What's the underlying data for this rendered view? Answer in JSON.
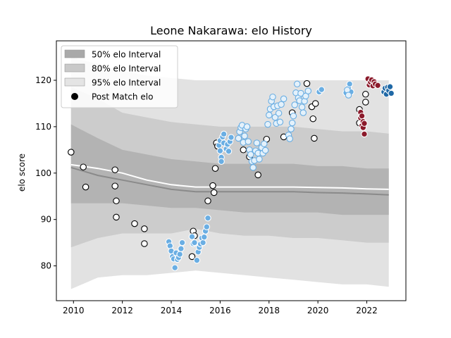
{
  "chart_data": {
    "type": "scatter",
    "title": "Leone Nakarawa: elo History",
    "xlabel": "",
    "ylabel": "elo score",
    "xlim": [
      2009.3,
      2023.6
    ],
    "ylim": [
      72.5,
      128.5
    ],
    "x_ticks": [
      2010,
      2012,
      2014,
      2016,
      2018,
      2020,
      2022
    ],
    "y_ticks": [
      80,
      90,
      100,
      110,
      120
    ],
    "grid": false,
    "legend_position": "top-left",
    "legend": [
      {
        "label": "50% elo Interval",
        "kind": "band",
        "color": "#a9a9a9"
      },
      {
        "label": "80% elo Interval",
        "kind": "band",
        "color": "#c9c9c9"
      },
      {
        "label": "95% elo Interval",
        "kind": "band",
        "color": "#e4e4e4"
      },
      {
        "label": "Post Match elo",
        "kind": "marker",
        "color": "#000000"
      }
    ],
    "colors": {
      "band50": "#b3b3b3",
      "band80": "#cccccc",
      "band95": "#e2e2e2",
      "median": "#8a8a8a",
      "mean": "#ffffff"
    },
    "interval_series": {
      "x": [
        2009.9,
        2011.0,
        2012.0,
        2013.0,
        2014.0,
        2015.0,
        2016.0,
        2017.0,
        2018.0,
        2019.0,
        2020.0,
        2021.0,
        2022.0,
        2022.9
      ],
      "lo95": [
        75.0,
        77.5,
        78.0,
        78.0,
        78.5,
        79.0,
        78.5,
        78.0,
        77.5,
        77.0,
        76.5,
        76.0,
        76.0,
        75.5
      ],
      "lo80": [
        84.0,
        86.0,
        87.0,
        87.0,
        87.0,
        88.0,
        87.0,
        86.5,
        86.5,
        86.0,
        86.0,
        85.5,
        85.0,
        85.0
      ],
      "lo50": [
        93.5,
        93.5,
        93.5,
        93.0,
        92.5,
        92.5,
        92.0,
        91.5,
        91.5,
        91.5,
        91.5,
        91.0,
        91.0,
        91.0
      ],
      "median": [
        101.2,
        99.5,
        98.5,
        97.5,
        96.5,
        96.0,
        96.0,
        96.0,
        96.0,
        96.0,
        95.8,
        95.7,
        95.5,
        95.3
      ],
      "mean": [
        101.8,
        101.0,
        100.0,
        98.5,
        97.5,
        97.0,
        97.0,
        97.0,
        97.0,
        97.0,
        96.9,
        96.8,
        96.6,
        96.5
      ],
      "hi50": [
        110.5,
        107.5,
        105.0,
        104.0,
        103.0,
        102.5,
        102.0,
        102.0,
        102.0,
        102.0,
        101.5,
        101.5,
        101.0,
        101.0
      ],
      "hi80": [
        118.5,
        116.0,
        113.0,
        112.0,
        111.0,
        110.5,
        110.0,
        110.0,
        110.0,
        110.0,
        109.5,
        109.0,
        109.0,
        108.5
      ],
      "hi95": [
        125.0,
        123.5,
        122.0,
        121.0,
        120.5,
        120.0,
        120.0,
        120.0,
        120.0,
        120.0,
        120.0,
        120.0,
        120.0,
        120.0
      ]
    },
    "series": [
      {
        "name": "Post Match elo",
        "fill": "#ffffff",
        "edge": "#000000",
        "points": [
          [
            2009.9,
            104.5
          ],
          [
            2010.4,
            101.3
          ],
          [
            2010.5,
            97.0
          ],
          [
            2011.7,
            100.7
          ],
          [
            2011.7,
            97.2
          ],
          [
            2011.75,
            94.0
          ],
          [
            2011.75,
            90.5
          ],
          [
            2012.5,
            89.1
          ],
          [
            2012.9,
            88.0
          ],
          [
            2012.9,
            84.8
          ],
          [
            2014.9,
            87.5
          ],
          [
            2014.95,
            86.5
          ],
          [
            2014.85,
            82.0
          ],
          [
            2015.5,
            94.0
          ],
          [
            2015.7,
            97.3
          ],
          [
            2015.75,
            95.8
          ],
          [
            2015.8,
            101.0
          ],
          [
            2015.85,
            106.5
          ],
          [
            2015.9,
            105.8
          ],
          [
            2016.95,
            105.0
          ],
          [
            2017.2,
            103.5
          ],
          [
            2017.55,
            99.6
          ],
          [
            2017.9,
            107.3
          ],
          [
            2018.6,
            107.8
          ],
          [
            2018.95,
            113.0
          ],
          [
            2019.55,
            119.3
          ],
          [
            2019.75,
            114.3
          ],
          [
            2019.8,
            111.7
          ],
          [
            2019.85,
            107.5
          ],
          [
            2019.9,
            115.0
          ],
          [
            2021.7,
            113.7
          ],
          [
            2021.7,
            110.8
          ],
          [
            2021.95,
            117.0
          ],
          [
            2021.95,
            115.3
          ]
        ]
      },
      {
        "name": "",
        "fill": "#6aaee3",
        "edge": "#ffffff",
        "points": [
          [
            2013.9,
            85.2
          ],
          [
            2013.95,
            84.3
          ],
          [
            2014.0,
            83.2
          ],
          [
            2014.05,
            82.0
          ],
          [
            2014.1,
            81.5
          ],
          [
            2014.15,
            79.6
          ],
          [
            2014.2,
            82.8
          ],
          [
            2014.25,
            81.4
          ],
          [
            2014.3,
            81.8
          ],
          [
            2014.35,
            82.5
          ],
          [
            2014.4,
            83.7
          ],
          [
            2014.45,
            85.0
          ],
          [
            2014.85,
            86.3
          ],
          [
            2014.9,
            84.8
          ],
          [
            2014.95,
            85.0
          ],
          [
            2015.05,
            81.2
          ],
          [
            2015.1,
            83.0
          ],
          [
            2015.15,
            84.0
          ],
          [
            2015.2,
            84.7
          ],
          [
            2015.25,
            86.0
          ],
          [
            2015.3,
            85.0
          ],
          [
            2015.35,
            86.2
          ],
          [
            2015.4,
            87.5
          ],
          [
            2015.45,
            88.4
          ],
          [
            2015.5,
            90.3
          ],
          [
            2015.95,
            106.0
          ],
          [
            2016.0,
            107.0
          ],
          [
            2016.0,
            104.8
          ],
          [
            2016.05,
            103.4
          ],
          [
            2016.05,
            102.5
          ],
          [
            2016.1,
            107.8
          ],
          [
            2016.15,
            106.5
          ],
          [
            2016.15,
            108.4
          ],
          [
            2016.25,
            105.2
          ],
          [
            2016.3,
            106.2
          ],
          [
            2016.35,
            104.7
          ],
          [
            2016.4,
            106.8
          ],
          [
            2016.45,
            107.7
          ],
          [
            2020.05,
            117.5
          ],
          [
            2020.15,
            118.0
          ],
          [
            2021.15,
            117.3
          ],
          [
            2021.25,
            118.3
          ],
          [
            2021.3,
            119.2
          ],
          [
            2021.35,
            117.5
          ]
        ]
      },
      {
        "name": "",
        "fill": "#e4f1fb",
        "edge": "#6aaee3",
        "points": [
          [
            2016.75,
            107.5
          ],
          [
            2016.8,
            108.9
          ],
          [
            2016.85,
            109.8
          ],
          [
            2016.9,
            110.3
          ],
          [
            2016.95,
            106.6
          ],
          [
            2017.0,
            108.0
          ],
          [
            2017.05,
            109.5
          ],
          [
            2017.1,
            110.0
          ],
          [
            2017.15,
            106.8
          ],
          [
            2017.2,
            105.0
          ],
          [
            2017.25,
            104.0
          ],
          [
            2017.3,
            102.5
          ],
          [
            2017.35,
            101.2
          ],
          [
            2017.4,
            102.7
          ],
          [
            2017.45,
            104.8
          ],
          [
            2017.5,
            106.5
          ],
          [
            2017.55,
            104.3
          ],
          [
            2017.6,
            103.0
          ],
          [
            2017.7,
            105.5
          ],
          [
            2017.75,
            104.3
          ],
          [
            2017.8,
            106.3
          ],
          [
            2017.85,
            104.9
          ],
          [
            2017.95,
            110.5
          ],
          [
            2018.0,
            112.5
          ],
          [
            2018.05,
            113.8
          ],
          [
            2018.1,
            115.5
          ],
          [
            2018.15,
            116.4
          ],
          [
            2018.2,
            114.3
          ],
          [
            2018.25,
            112.0
          ],
          [
            2018.3,
            110.7
          ],
          [
            2018.35,
            114.5
          ],
          [
            2018.4,
            112.9
          ],
          [
            2018.45,
            111.0
          ],
          [
            2018.5,
            114.8
          ],
          [
            2018.6,
            116.0
          ],
          [
            2018.8,
            108.2
          ],
          [
            2018.85,
            107.4
          ],
          [
            2018.9,
            109.5
          ],
          [
            2018.95,
            110.8
          ],
          [
            2019.0,
            112.3
          ],
          [
            2019.05,
            114.7
          ],
          [
            2019.1,
            117.3
          ],
          [
            2019.15,
            119.2
          ],
          [
            2019.2,
            116.2
          ],
          [
            2019.25,
            115.6
          ],
          [
            2019.3,
            117.2
          ],
          [
            2019.35,
            114.2
          ],
          [
            2019.4,
            113.0
          ],
          [
            2019.45,
            115.5
          ],
          [
            2019.5,
            116.6
          ],
          [
            2019.6,
            117.7
          ],
          [
            2021.2,
            117.9
          ],
          [
            2021.25,
            116.8
          ]
        ]
      },
      {
        "name": "",
        "fill": "#8b1a2b",
        "edge": "#ffffff",
        "points": [
          [
            2021.75,
            113.1
          ],
          [
            2021.75,
            111.9
          ],
          [
            2021.8,
            112.3
          ],
          [
            2021.8,
            110.2
          ],
          [
            2021.85,
            111.1
          ],
          [
            2021.85,
            109.8
          ],
          [
            2021.9,
            108.4
          ],
          [
            2021.9,
            110.7
          ],
          [
            2022.05,
            120.3
          ],
          [
            2022.1,
            119.0
          ],
          [
            2022.15,
            119.6
          ],
          [
            2022.2,
            120.1
          ],
          [
            2022.25,
            118.8
          ],
          [
            2022.3,
            119.7
          ],
          [
            2022.35,
            119.2
          ],
          [
            2022.45,
            118.9
          ]
        ]
      },
      {
        "name": "",
        "fill": "#2069a6",
        "edge": "#ffffff",
        "points": [
          [
            2022.7,
            117.5
          ],
          [
            2022.75,
            118.3
          ],
          [
            2022.8,
            117.0
          ],
          [
            2022.85,
            118.5
          ],
          [
            2022.9,
            117.8
          ],
          [
            2022.95,
            118.6
          ],
          [
            2023.0,
            117.2
          ]
        ]
      }
    ]
  }
}
